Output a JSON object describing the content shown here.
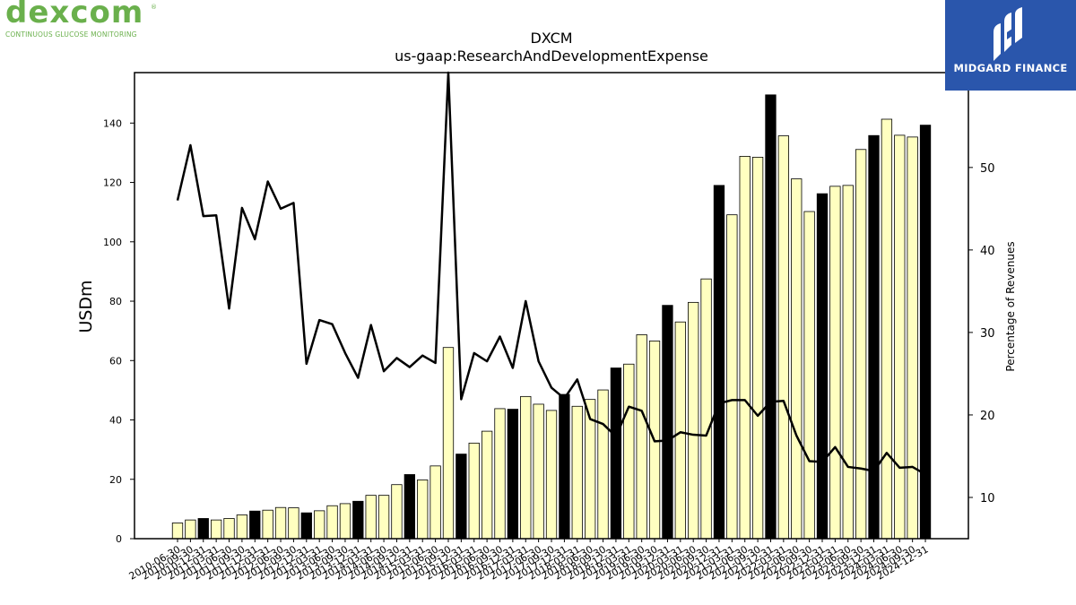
{
  "brand": {
    "dexcom_word": "dexcom",
    "dexcom_reg": "®",
    "dexcom_tagline": "CONTINUOUS GLUCOSE MONITORING",
    "midgard_name": "MIDGARD FINANCE",
    "dexcom_color": "#6ab04c",
    "midgard_bg": "#2a56ac"
  },
  "chart_data": {
    "type": "bar",
    "title": "DXCM",
    "subtitle": "us-gaap:ResearchAndDevelopmentExpense",
    "ylabel": "USDm",
    "y2label": "Percentage of Revenues",
    "ylim": [
      0,
      157
    ],
    "y2lim": [
      5,
      61.5
    ],
    "yticks": [
      0,
      20,
      40,
      60,
      80,
      100,
      120,
      140
    ],
    "y2ticks": [
      10,
      20,
      30,
      40,
      50
    ],
    "grid": false,
    "colors": {
      "quarter_bar": "#ffffc0",
      "annual_bar": "#000000",
      "line": "#000000"
    },
    "categories": [
      "2010-06-30",
      "2010-09-30",
      "2010-12-31",
      "2011-03-31",
      "2011-06-30",
      "2011-09-30",
      "2011-12-31",
      "2012-03-31",
      "2012-06-30",
      "2012-09-30",
      "2012-12-31",
      "2013-03-31",
      "2013-06-30",
      "2013-09-30",
      "2013-12-31",
      "2014-03-31",
      "2014-06-30",
      "2014-09-30",
      "2014-12-31",
      "2015-03-31",
      "2015-06-30",
      "2015-09-30",
      "2015-12-31",
      "2016-03-31",
      "2016-06-30",
      "2016-09-30",
      "2016-12-31",
      "2017-03-31",
      "2017-06-30",
      "2017-09-30",
      "2017-12-31",
      "2018-03-31",
      "2018-06-30",
      "2018-09-30",
      "2018-12-31",
      "2019-03-31",
      "2019-06-30",
      "2019-09-30",
      "2019-12-31",
      "2020-03-31",
      "2020-06-30",
      "2020-09-30",
      "2020-12-31",
      "2021-03-31",
      "2021-06-30",
      "2021-09-30",
      "2021-12-31",
      "2022-03-31",
      "2022-06-30",
      "2022-09-30",
      "2022-12-31",
      "2023-03-31",
      "2023-06-30",
      "2023-09-30",
      "2023-12-31",
      "2024-03-31",
      "2024-06-30",
      "2024-09-30",
      "2024-12-31"
    ],
    "series": [
      {
        "name": "",
        "kind": "bar",
        "values": [
          5.3,
          6.3,
          6.8,
          6.3,
          6.8,
          8.0,
          9.3,
          9.6,
          10.5,
          10.4,
          8.7,
          9.4,
          11.1,
          11.8,
          12.6,
          14.6,
          14.6,
          18.2,
          21.6,
          19.8,
          24.5,
          64.4,
          28.5,
          32.2,
          36.2,
          43.8,
          43.6,
          47.9,
          45.3,
          43.2,
          48.6,
          44.6,
          46.9,
          50.1,
          57.5,
          58.8,
          68.7,
          66.6,
          78.6,
          73.0,
          79.6,
          87.5,
          119.0,
          109.1,
          128.8,
          128.5,
          149.5,
          135.7,
          121.2,
          110.2,
          116.2,
          118.7,
          119.0,
          131.1,
          135.8,
          141.3,
          135.9,
          135.3,
          139.3
        ],
        "annual": [
          false,
          false,
          true,
          false,
          false,
          false,
          true,
          false,
          false,
          false,
          true,
          false,
          false,
          false,
          true,
          false,
          false,
          false,
          true,
          false,
          false,
          false,
          true,
          false,
          false,
          false,
          true,
          false,
          false,
          false,
          true,
          false,
          false,
          false,
          true,
          false,
          false,
          false,
          true,
          false,
          false,
          false,
          true,
          false,
          false,
          false,
          true,
          false,
          false,
          false,
          true,
          false,
          false,
          false,
          true,
          false,
          false,
          false,
          true
        ]
      },
      {
        "name": "",
        "kind": "line",
        "axis": "right",
        "values": [
          46.0,
          52.7,
          44.1,
          44.2,
          32.9,
          45.1,
          41.3,
          48.3,
          45.0,
          45.7,
          26.2,
          31.5,
          31.0,
          27.5,
          24.5,
          30.9,
          25.3,
          26.9,
          25.8,
          27.2,
          26.3,
          61.5,
          21.9,
          27.5,
          26.5,
          29.5,
          25.7,
          33.8,
          26.5,
          23.3,
          22.0,
          24.3,
          19.5,
          18.9,
          17.4,
          21.0,
          20.5,
          16.8,
          16.9,
          17.9,
          17.6,
          17.5,
          21.4,
          21.8,
          21.8,
          19.9,
          21.6,
          21.7,
          17.5,
          14.4,
          14.3,
          16.1,
          13.7,
          13.5,
          13.2,
          15.4,
          13.6,
          13.7,
          12.8
        ]
      }
    ]
  }
}
